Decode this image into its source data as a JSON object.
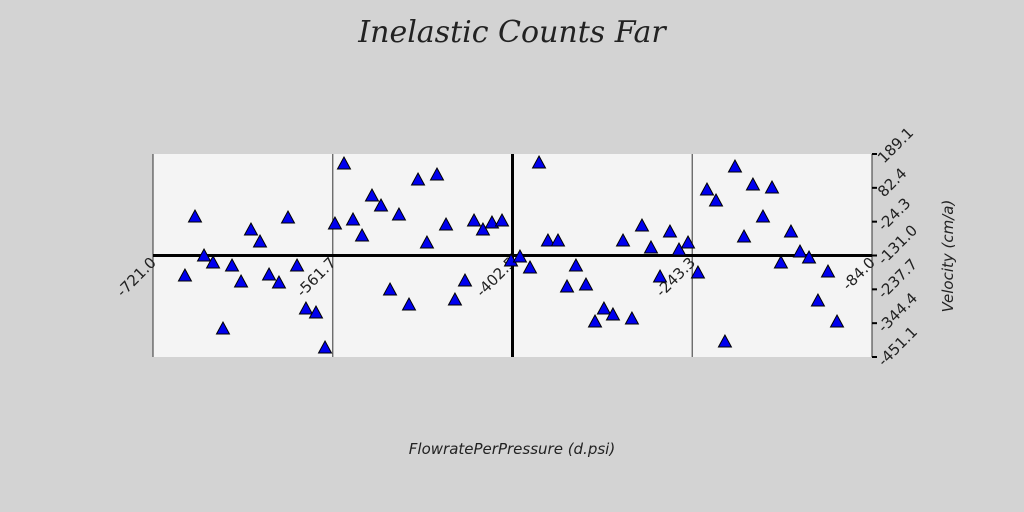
{
  "chart_data": {
    "type": "scatter",
    "title": "Inelastic Counts Far",
    "x_label": "FlowratePerPressure (d.psi)",
    "y_label": "Velocity (cm/a)",
    "xlim": [
      -721.0,
      -84.0
    ],
    "xticks": [
      {
        "value": -721.0,
        "label": "-721.0"
      },
      -561.7,
      -402.5,
      -243.3,
      {
        "value": -84.0,
        "label": "-84.0"
      }
    ],
    "ylim": [
      -451.1,
      189.1
    ],
    "yticks": [
      189.1,
      82.4,
      -24.3,
      {
        "value": -131.0,
        "label": "-131.0"
      },
      -237.7,
      -344.4,
      -451.1
    ],
    "grid": true,
    "color": "#0000ee",
    "x": [
      -692.7,
      -683.8,
      -675.8,
      -667.8,
      -659.0,
      -651.0,
      -643.0,
      -634.2,
      -626.2,
      -618.2,
      -609.4,
      -601.4,
      -593.4,
      -585.5,
      -576.6,
      -568.6,
      -559.8,
      -551.8,
      -543.8,
      -535.8,
      -527.0,
      -519.0,
      -511.0,
      -503.1,
      -494.2,
      -486.2,
      -478.3,
      -469.4,
      -461.4,
      -453.5,
      -444.6,
      -436.6,
      -428.7,
      -420.7,
      -411.8,
      -403.8,
      -395.9,
      -387.0,
      -379.0,
      -371.1,
      -362.2,
      -354.2,
      -346.3,
      -337.4,
      -329.4,
      -321.5,
      -313.5,
      -304.6,
      -296.7,
      -287.8,
      -279.8,
      -271.8,
      -263.0,
      -255.0,
      -247.0,
      -238.2,
      -230.2,
      -222.2,
      -214.3,
      -205.4,
      -197.4,
      -189.5,
      -180.6,
      -172.6,
      -164.7,
      -155.8,
      -147.8,
      -139.8,
      -131.9,
      -123.0,
      -115.0
    ],
    "values": [
      -195.7,
      -9.6,
      -132.6,
      -154.7,
      -362.8,
      -164.1,
      -214.6,
      -50.6,
      -88.4,
      -192.5,
      -217.7,
      -12.7,
      -164.1,
      -299.7,
      -312.3,
      -422.7,
      -31.7,
      157.6,
      -19.0,
      -69.5,
      56.6,
      25.1,
      -239.8,
      -3.3,
      -287.1,
      107.1,
      -91.6,
      122.9,
      -34.8,
      -271.3,
      -211.4,
      -22.2,
      -50.6,
      -28.5,
      -22.2,
      -148.3,
      -135.7,
      -170.4,
      160.7,
      -85.3,
      -85.3,
      -230.3,
      -164.1,
      -224.0,
      -340.7,
      -299.7,
      -318.6,
      -85.3,
      -331.3,
      -38.0,
      -107.3,
      -198.8,
      -56.9,
      -113.7,
      -91.6,
      -186.2,
      75.6,
      40.9,
      -403.8,
      148.1,
      -72.7,
      91.3,
      -9.6,
      81.9,
      -154.7,
      -56.9,
      -120.0,
      -138.9,
      -274.5,
      -183.0,
      -340.7
    ]
  }
}
